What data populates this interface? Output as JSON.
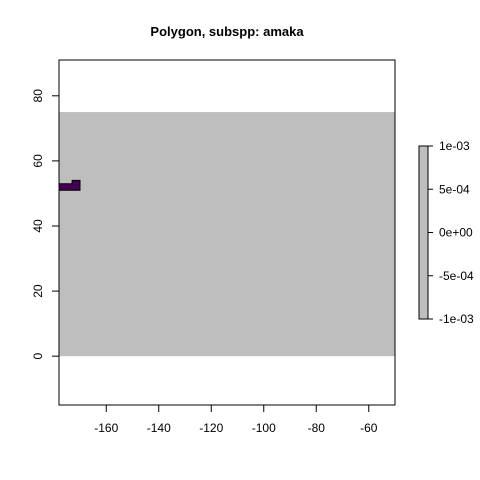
{
  "chart_data": {
    "type": "heatmap",
    "title": "Polygon, subspp: amaka",
    "xlabel": "",
    "ylabel": "",
    "xlim": [
      -178,
      -50
    ],
    "ylim": [
      -15,
      91
    ],
    "x_ticks": [
      -160,
      -140,
      -120,
      -100,
      -80,
      -60
    ],
    "x_tick_labels": [
      "-160",
      "-140",
      "-120",
      "-100",
      "-80",
      "-60"
    ],
    "y_ticks": [
      0,
      20,
      40,
      60,
      80
    ],
    "y_tick_labels": [
      "0",
      "20",
      "40",
      "60",
      "80"
    ],
    "raster_extent": {
      "xmin": -178,
      "xmax": -50,
      "ymin": 0,
      "ymax": 75
    },
    "raster_fill": "#bebebe",
    "polygon": {
      "name": "amaka",
      "color": "#440154",
      "outline": "#000000",
      "vertices": [
        [
          -178,
          51
        ],
        [
          -170,
          51
        ],
        [
          -170,
          54
        ],
        [
          -173,
          54
        ],
        [
          -173,
          53
        ],
        [
          -178,
          53
        ]
      ]
    },
    "legend": {
      "position": "right",
      "fill": "#bebebe",
      "range": [
        -0.001,
        0.001
      ],
      "ticks": [
        0.001,
        0.0005,
        0,
        -0.0005,
        -0.001
      ],
      "labels": [
        "1e-03",
        "5e-04",
        "0e+00",
        "-5e-04",
        "-1e-03"
      ]
    },
    "grid": false
  }
}
